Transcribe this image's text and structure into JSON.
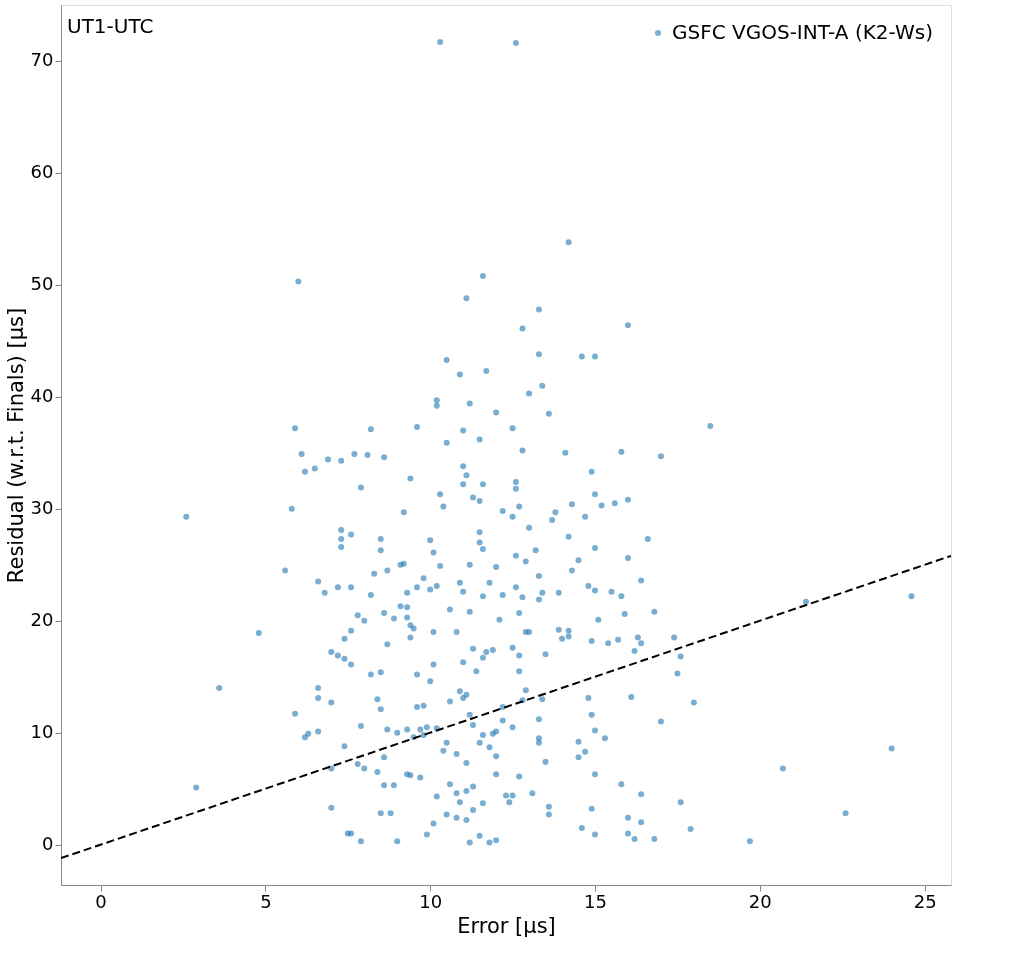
{
  "chart_data": {
    "type": "scatter",
    "xlabel": "Error [μs]",
    "ylabel": "Residual (w.r.t. Finals) [μs]",
    "annotations": [
      "UT1-UTC"
    ],
    "xlim": [
      -1.2,
      25.8
    ],
    "ylim": [
      -3.6,
      75
    ],
    "xticks": [
      0,
      5,
      10,
      15,
      20,
      25
    ],
    "yticks": [
      0,
      10,
      20,
      30,
      40,
      50,
      60,
      70
    ],
    "grid": false,
    "legend": "top right",
    "marker": "circle",
    "series": [
      {
        "name": "GSFC VGOS-INT-A (K2-Ws)",
        "color": "#1f77b4",
        "x": [
          10.3,
          12.6,
          14.2,
          6.0,
          11.6,
          11.1,
          13.3,
          12.8,
          16.0,
          10.5,
          13.3,
          14.6,
          15.0,
          11.7,
          10.9,
          13.4,
          10.2,
          10.2,
          11.2,
          12.0,
          13.6,
          14.1,
          13.0,
          12.5,
          11.5,
          5.9,
          8.2,
          9.6,
          18.5,
          6.1,
          6.5,
          6.9,
          7.3,
          7.7,
          8.1,
          8.6,
          6.2,
          7.9,
          5.8,
          2.6,
          9.2,
          9.4,
          10.3,
          10.4,
          11.0,
          11.1,
          11.0,
          11.3,
          11.6,
          11.5,
          12.6,
          12.6,
          12.2,
          12.5,
          12.7,
          13.0,
          13.8,
          13.7,
          14.3,
          14.9,
          15.0,
          15.6,
          16.0,
          16.0,
          15.8,
          17.0,
          16.6,
          14.2,
          13.2,
          11.5,
          11.5,
          11.6,
          12.0,
          11.8,
          10.9,
          10.3,
          10.1,
          10.0,
          9.8,
          9.2,
          8.5,
          8.5,
          7.3,
          7.3,
          7.3,
          7.6,
          7.2,
          7.6,
          8.3,
          8.7,
          5.6,
          6.6,
          6.8,
          8.2,
          8.6,
          7.6,
          7.4,
          7.2,
          7.4,
          7.6,
          7.0,
          7.8,
          8.0,
          4.8,
          3.6,
          5.9,
          6.2,
          6.3,
          6.6,
          6.6,
          6.6,
          7.0,
          7.4,
          8.4,
          8.5,
          8.7,
          8.6,
          7.9,
          8.2,
          8.5,
          8.7,
          8.9,
          9.3,
          9.4,
          9.5,
          9.4,
          9.6,
          9.3,
          9.1,
          9.3,
          9.6,
          9.1,
          10.0,
          10.2,
          10.6,
          10.1,
          10.8,
          11.2,
          11.0,
          11.6,
          12.2,
          12.8,
          12.7,
          12.1,
          12.9,
          12.5,
          12.7,
          11.9,
          11.7,
          11.3,
          11.0,
          11.6,
          11.4,
          10.1,
          10.0,
          9.8,
          9.6,
          9.3,
          9.0,
          9.5,
          9.7,
          9.8,
          9.9,
          10.2,
          10.6,
          10.5,
          10.4,
          10.8,
          11.1,
          10.9,
          11.0,
          11.1,
          11.2,
          11.3,
          12.0,
          11.9,
          12.2,
          12.2,
          12.8,
          13.3,
          13.3,
          13.3,
          13.5,
          13.1,
          12.7,
          12.5,
          12.0,
          12.0,
          11.8,
          11.6,
          11.1,
          10.8,
          10.6,
          10.9,
          11.3,
          11.3,
          12.3,
          12.4,
          13.6,
          13.6,
          14.5,
          14.5,
          14.7,
          14.9,
          14.8,
          15.0,
          15.0,
          14.9,
          14.6,
          15.0,
          15.3,
          15.8,
          16.1,
          16.2,
          16.4,
          16.3,
          17.4,
          16.8,
          17.0,
          17.6,
          17.9,
          18.0,
          17.6,
          17.5,
          16.0,
          16.0,
          16.2,
          16.4,
          16.4,
          16.8,
          19.7,
          20.7,
          21.4,
          22.6,
          24.0,
          24.6,
          2.9,
          7.0,
          7.0,
          7.5,
          7.6,
          7.9,
          8.0,
          7.8,
          8.4,
          8.6,
          8.9,
          9.3,
          9.4,
          9.7,
          8.5,
          8.8,
          9.0,
          9.9,
          10.1,
          10.5,
          10.8,
          10.2,
          11.1,
          11.2,
          11.5,
          11.6,
          11.8,
          12.0,
          12.5,
          12.9,
          13.4,
          13.5,
          14.0,
          14.2,
          14.2,
          15.1,
          15.5,
          15.8,
          15.9,
          15.4,
          14.9,
          14.3,
          14.5,
          13.9,
          13.9,
          13.4,
          13.3,
          12.9,
          12.6,
          12.6,
          13.0,
          11.2,
          12.7,
          11.5,
          13.3,
          15.0,
          14.7,
          15.2,
          14.8,
          15.0,
          16.4,
          15.7,
          12.8,
          10.5,
          11.0
        ],
        "values": [
          71.7,
          71.6,
          53.8,
          50.3,
          50.8,
          48.8,
          47.8,
          46.1,
          46.4,
          43.3,
          43.8,
          43.6,
          43.6,
          42.3,
          42.0,
          41.0,
          39.7,
          39.2,
          39.4,
          38.6,
          38.5,
          35.0,
          40.3,
          37.2,
          36.2,
          37.2,
          37.1,
          37.3,
          37.4,
          34.9,
          33.6,
          34.4,
          34.3,
          34.9,
          34.8,
          34.6,
          33.3,
          31.9,
          30.0,
          29.3,
          29.7,
          32.7,
          31.3,
          30.2,
          33.8,
          33.0,
          32.2,
          31.0,
          32.2,
          30.7,
          32.4,
          31.8,
          29.8,
          29.3,
          30.2,
          28.3,
          29.7,
          29.0,
          30.4,
          33.3,
          31.3,
          30.5,
          30.8,
          25.6,
          35.1,
          34.7,
          27.3,
          27.5,
          26.3,
          27.9,
          27.0,
          26.4,
          24.8,
          23.4,
          23.4,
          24.9,
          26.1,
          27.2,
          23.8,
          25.1,
          27.3,
          26.3,
          28.1,
          27.3,
          26.6,
          27.7,
          23.0,
          23.0,
          24.2,
          24.5,
          24.5,
          23.5,
          22.5,
          22.3,
          20.7,
          19.1,
          18.4,
          16.9,
          16.6,
          16.1,
          17.2,
          20.5,
          20.0,
          18.9,
          14.0,
          11.7,
          9.6,
          9.9,
          10.1,
          13.1,
          14.0,
          12.7,
          8.8,
          13.0,
          12.1,
          10.3,
          7.8,
          10.6,
          15.2,
          15.4,
          17.9,
          20.2,
          20.3,
          19.6,
          19.3,
          18.5,
          15.2,
          21.2,
          21.3,
          22.5,
          23.0,
          25.0,
          22.8,
          23.1,
          21.0,
          19.0,
          19.0,
          20.8,
          22.6,
          22.2,
          22.3,
          22.1,
          20.7,
          20.1,
          19.0,
          17.6,
          16.9,
          17.4,
          17.2,
          17.5,
          16.3,
          16.7,
          15.5,
          16.1,
          14.6,
          12.4,
          12.3,
          10.3,
          10.0,
          9.6,
          10.3,
          9.8,
          10.5,
          10.4,
          12.8,
          9.1,
          8.4,
          8.1,
          7.3,
          13.7,
          13.1,
          13.4,
          11.6,
          10.7,
          10.1,
          9.9,
          12.3,
          11.1,
          12.9,
          11.2,
          9.5,
          9.1,
          7.4,
          4.6,
          6.1,
          10.5,
          7.9,
          6.3,
          8.7,
          9.8,
          4.8,
          4.6,
          5.4,
          3.8,
          3.1,
          5.2,
          4.4,
          3.8,
          3.4,
          2.7,
          7.8,
          9.2,
          8.3,
          11.6,
          13.1,
          10.2,
          6.3,
          3.2,
          1.5,
          0.9,
          9.5,
          5.4,
          13.2,
          17.3,
          18.0,
          18.5,
          18.5,
          20.8,
          11.0,
          3.8,
          1.4,
          12.7,
          16.8,
          15.3,
          2.4,
          1.0,
          0.5,
          4.5,
          2.0,
          0.5,
          0.3,
          6.8,
          21.7,
          2.8,
          8.6,
          22.2,
          5.1,
          3.3,
          6.8,
          1.0,
          1.0,
          0.3,
          6.8,
          7.2,
          6.5,
          5.3,
          5.3,
          6.3,
          6.2,
          6.0,
          2.8,
          2.8,
          0.3,
          0.9,
          1.9,
          2.7,
          2.4,
          4.3,
          2.2,
          0.2,
          0.8,
          3.7,
          0.2,
          0.4,
          4.4,
          13.8,
          13.0,
          17.0,
          18.4,
          18.6,
          19.1,
          20.1,
          22.6,
          22.2,
          20.6,
          18.0,
          18.2,
          24.5,
          25.4,
          22.5,
          19.2,
          22.5,
          24.0,
          25.3,
          25.8,
          23.0,
          19.0,
          25.0,
          15.5,
          9.1,
          21.9,
          26.5,
          29.3,
          30.3,
          23.1,
          22.7,
          23.6,
          18.3,
          35.2,
          35.9,
          37.0
        ]
      },
      {
        "type": "line",
        "color": "#000000",
        "line_style": "dashed",
        "marker": "none",
        "x": [
          -1.2,
          25.8
        ],
        "values": [
          -1.2,
          25.8
        ]
      }
    ]
  }
}
